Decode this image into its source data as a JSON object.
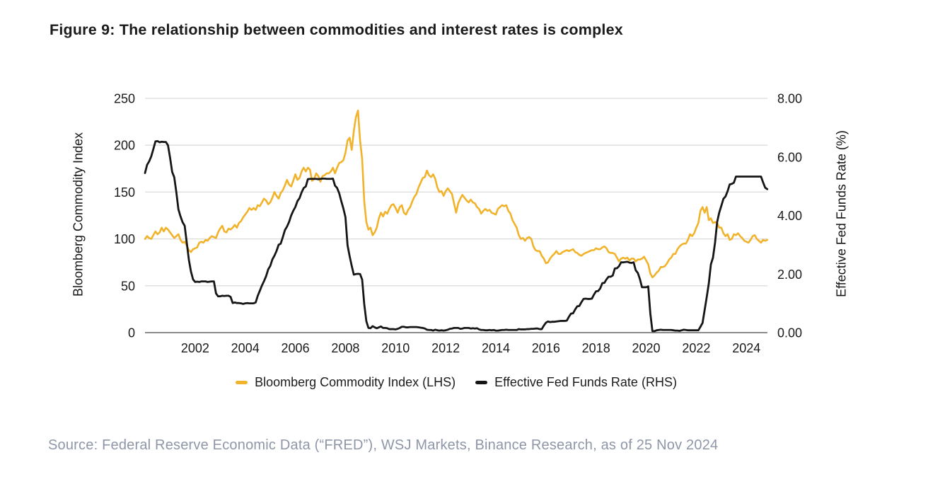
{
  "title": "Figure 9: The relationship between commodities and interest rates is complex",
  "source": "Source: Federal Reserve Economic Data (“FRED”), WSJ Markets, Binance Research, as of 25 Nov 2024",
  "chart_data": {
    "type": "line",
    "title": "Figure 9: The relationship between commodities and interest rates is complex",
    "x_start": 2000,
    "x_step": 0.0833333,
    "x_axis": {
      "range": [
        2000,
        2024.84
      ],
      "tick_values": [
        2002,
        2004,
        2006,
        2008,
        2010,
        2012,
        2014,
        2016,
        2018,
        2020,
        2022,
        2024
      ],
      "tick_labels": [
        "2002",
        "2004",
        "2006",
        "2008",
        "2010",
        "2012",
        "2014",
        "2016",
        "2018",
        "2020",
        "2022",
        "2024"
      ]
    },
    "left_axis": {
      "label": "Bloomberg Commodity Index",
      "range": [
        0,
        250
      ],
      "tick_values": [
        0,
        50,
        100,
        150,
        200,
        250
      ],
      "tick_labels": [
        "0",
        "50",
        "100",
        "150",
        "200",
        "250"
      ]
    },
    "right_axis": {
      "label": "Effective Fed Funds Rate (%)",
      "range": [
        0,
        8
      ],
      "tick_values": [
        0,
        2,
        4,
        6,
        8
      ],
      "tick_labels": [
        "0.00",
        "2.00",
        "4.00",
        "6.00",
        "8.00"
      ]
    },
    "grid": {
      "on": true,
      "color": "#dcdcdc",
      "baseline_color": "#8c8c8c"
    },
    "legend_position": "bottom",
    "series": [
      {
        "name": "Bloomberg Commodity Index (LHS)",
        "axis": "left",
        "color": "#f0b32b",
        "values": [
          100,
          103,
          101,
          100,
          104,
          108,
          105,
          107,
          112,
          108,
          112,
          110,
          107,
          104,
          101,
          103,
          105,
          99,
          96,
          97,
          93,
          88,
          86,
          89,
          90,
          91,
          96,
          97,
          96,
          99,
          98,
          101,
          103,
          102,
          101,
          107,
          111,
          114,
          108,
          107,
          111,
          110,
          112,
          115,
          112,
          117,
          119,
          123,
          126,
          129,
          133,
          131,
          133,
          131,
          136,
          135,
          139,
          143,
          141,
          137,
          139,
          144,
          150,
          146,
          143,
          149,
          152,
          157,
          163,
          158,
          156,
          162,
          169,
          163,
          165,
          172,
          176,
          172,
          176,
          174,
          162,
          164,
          170,
          167,
          161,
          167,
          168,
          170,
          170,
          172,
          176,
          170,
          176,
          181,
          182,
          184,
          192,
          205,
          208,
          195,
          215,
          230,
          237,
          205,
          185,
          140,
          118,
          110,
          112,
          104,
          107,
          112,
          122,
          128,
          124,
          129,
          127,
          132,
          136,
          137,
          133,
          128,
          134,
          136,
          128,
          126,
          131,
          134,
          140,
          145,
          148,
          155,
          160,
          165,
          166,
          173,
          168,
          166,
          169,
          164,
          155,
          150,
          151,
          146,
          151,
          154,
          151,
          148,
          138,
          128,
          138,
          143,
          147,
          144,
          141,
          139,
          142,
          139,
          138,
          134,
          132,
          127,
          130,
          132,
          130,
          131,
          128,
          127,
          126,
          132,
          134,
          136,
          135,
          136,
          130,
          127,
          120,
          116,
          112,
          104,
          100,
          101,
          98,
          101,
          102,
          100,
          92,
          88,
          87,
          87,
          82,
          79,
          74,
          75,
          79,
          82,
          84,
          87,
          84,
          84,
          86,
          87,
          88,
          87,
          88,
          89,
          86,
          85,
          83,
          82,
          84,
          85,
          86,
          87,
          88,
          88,
          90,
          89,
          89,
          91,
          92,
          90,
          86,
          85,
          85,
          84,
          80,
          76,
          79,
          80,
          79,
          80,
          77,
          79,
          79,
          76,
          78,
          78,
          79,
          81,
          77,
          73,
          63,
          59,
          61,
          64,
          66,
          70,
          70,
          71,
          74,
          78,
          80,
          84,
          84,
          89,
          92,
          94,
          95,
          95,
          99,
          105,
          103,
          106,
          112,
          117,
          130,
          134,
          128,
          134,
          120,
          122,
          117,
          118,
          117,
          112,
          112,
          106,
          103,
          105,
          99,
          100,
          105,
          104,
          106,
          103,
          101,
          98,
          97,
          96,
          99,
          103,
          104,
          100,
          98,
          96,
          99,
          98,
          99
        ]
      },
      {
        "name": "Effective Fed Funds Rate (RHS)",
        "axis": "right",
        "color": "#161616",
        "values": [
          5.45,
          5.73,
          5.85,
          6.02,
          6.27,
          6.53,
          6.54,
          6.5,
          6.52,
          6.51,
          6.51,
          6.4,
          5.98,
          5.49,
          5.31,
          4.8,
          4.21,
          3.97,
          3.77,
          3.65,
          3.07,
          2.49,
          2.09,
          1.82,
          1.73,
          1.74,
          1.73,
          1.75,
          1.75,
          1.75,
          1.73,
          1.74,
          1.75,
          1.75,
          1.34,
          1.24,
          1.24,
          1.26,
          1.25,
          1.26,
          1.26,
          1.22,
          1.01,
          1.03,
          1.01,
          1.01,
          1.0,
          0.98,
          1.0,
          1.01,
          1.0,
          1.0,
          1.0,
          1.03,
          1.26,
          1.43,
          1.61,
          1.76,
          1.93,
          2.16,
          2.28,
          2.5,
          2.63,
          2.79,
          3.0,
          3.04,
          3.26,
          3.5,
          3.62,
          3.78,
          4.0,
          4.16,
          4.29,
          4.49,
          4.59,
          4.79,
          4.94,
          4.99,
          5.24,
          5.25,
          5.25,
          5.25,
          5.25,
          5.24,
          5.25,
          5.26,
          5.26,
          5.25,
          5.25,
          5.25,
          5.26,
          5.02,
          4.94,
          4.76,
          4.49,
          4.24,
          3.94,
          2.98,
          2.61,
          2.28,
          1.98,
          2.0,
          2.01,
          2.0,
          1.81,
          0.97,
          0.39,
          0.16,
          0.15,
          0.22,
          0.18,
          0.15,
          0.18,
          0.21,
          0.16,
          0.16,
          0.15,
          0.12,
          0.12,
          0.12,
          0.11,
          0.13,
          0.16,
          0.2,
          0.2,
          0.18,
          0.18,
          0.19,
          0.19,
          0.19,
          0.19,
          0.18,
          0.17,
          0.16,
          0.14,
          0.1,
          0.09,
          0.09,
          0.07,
          0.1,
          0.08,
          0.07,
          0.08,
          0.07,
          0.08,
          0.1,
          0.13,
          0.14,
          0.16,
          0.16,
          0.16,
          0.13,
          0.14,
          0.16,
          0.16,
          0.16,
          0.14,
          0.15,
          0.14,
          0.15,
          0.11,
          0.09,
          0.09,
          0.08,
          0.08,
          0.09,
          0.08,
          0.09,
          0.07,
          0.07,
          0.08,
          0.09,
          0.09,
          0.1,
          0.09,
          0.09,
          0.09,
          0.09,
          0.09,
          0.12,
          0.11,
          0.11,
          0.11,
          0.12,
          0.12,
          0.13,
          0.13,
          0.14,
          0.14,
          0.12,
          0.12,
          0.24,
          0.34,
          0.38,
          0.36,
          0.37,
          0.37,
          0.38,
          0.39,
          0.4,
          0.4,
          0.4,
          0.41,
          0.54,
          0.65,
          0.66,
          0.79,
          0.9,
          0.91,
          1.04,
          1.15,
          1.16,
          1.15,
          1.15,
          1.16,
          1.3,
          1.41,
          1.42,
          1.51,
          1.69,
          1.7,
          1.82,
          1.91,
          1.91,
          1.95,
          2.19,
          2.2,
          2.27,
          2.4,
          2.4,
          2.41,
          2.42,
          2.39,
          2.38,
          2.4,
          2.13,
          2.04,
          1.83,
          1.55,
          1.55,
          1.55,
          1.58,
          0.65,
          0.05,
          0.05,
          0.08,
          0.09,
          0.1,
          0.09,
          0.09,
          0.09,
          0.09,
          0.09,
          0.08,
          0.07,
          0.07,
          0.06,
          0.08,
          0.1,
          0.09,
          0.08,
          0.08,
          0.08,
          0.08,
          0.08,
          0.08,
          0.2,
          0.33,
          0.77,
          1.21,
          1.68,
          2.33,
          2.56,
          3.08,
          3.78,
          4.1,
          4.33,
          4.57,
          4.65,
          4.83,
          5.06,
          5.08,
          5.12,
          5.33,
          5.33,
          5.33,
          5.33,
          5.33,
          5.33,
          5.33,
          5.33,
          5.33,
          5.33,
          5.33,
          5.33,
          5.33,
          5.13,
          4.95,
          4.9
        ]
      }
    ]
  }
}
